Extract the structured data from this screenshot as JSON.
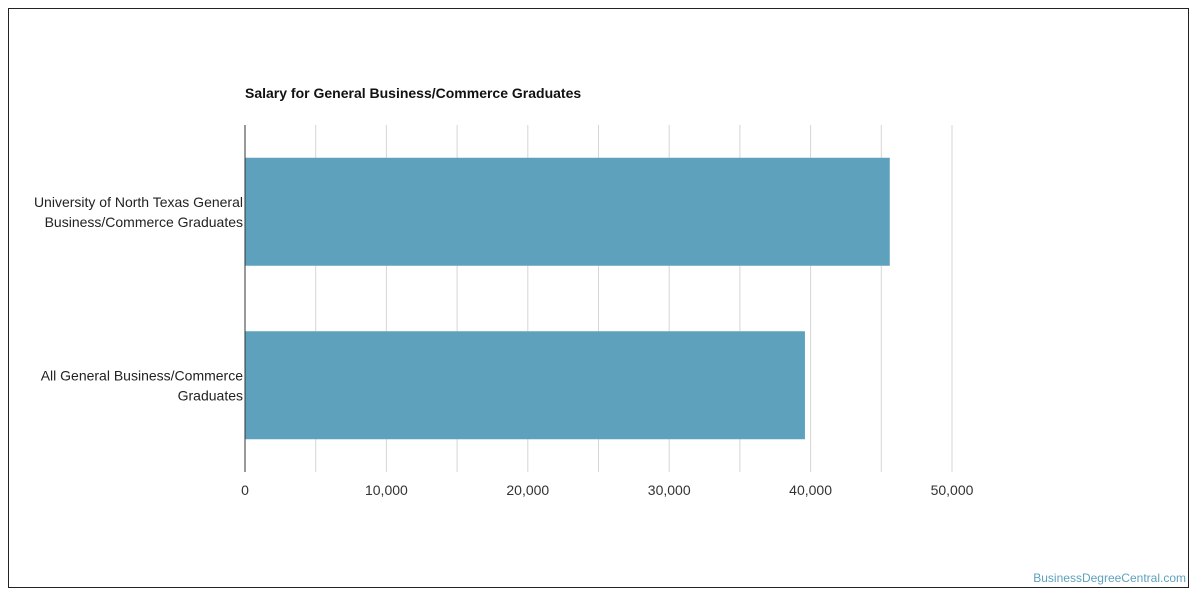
{
  "chart_data": {
    "type": "bar",
    "orientation": "horizontal",
    "title": "Salary for General Business/Commerce Graduates",
    "categories": [
      [
        "University of North Texas General",
        "Business/Commerce Graduates"
      ],
      [
        "All General Business/Commerce",
        "Graduates"
      ]
    ],
    "values": [
      45600,
      39600
    ],
    "xlim": [
      0,
      50000
    ],
    "x_ticks": [
      0,
      10000,
      20000,
      30000,
      40000,
      50000
    ],
    "x_tick_labels": [
      "0",
      "10,000",
      "20,000",
      "30,000",
      "40,000",
      "50,000"
    ],
    "grid": true,
    "bar_color": "#5ea1bd",
    "grid_color": "#d6d6d6",
    "axis_color": "#333333"
  },
  "watermark": "BusinessDegreeCentral.com"
}
